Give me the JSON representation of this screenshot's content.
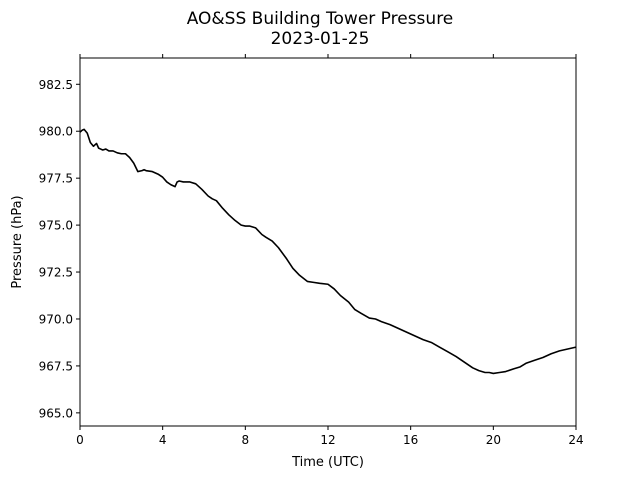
{
  "chart_data": {
    "type": "line",
    "title": "AO&SS Building Tower Pressure",
    "subtitle": "2023-01-25",
    "xlabel": "Time (UTC)",
    "ylabel": "Pressure (hPa)",
    "xlim": [
      0,
      24
    ],
    "ylim": [
      964.3,
      983.9
    ],
    "xticks": [
      0,
      4,
      8,
      12,
      16,
      20,
      24
    ],
    "xtick_labels": [
      "0",
      "4",
      "8",
      "12",
      "16",
      "20",
      "24"
    ],
    "yticks": [
      965.0,
      967.5,
      970.0,
      972.5,
      975.0,
      977.5,
      980.0,
      982.5
    ],
    "ytick_labels": [
      "965.0",
      "967.5",
      "970.0",
      "972.5",
      "975.0",
      "977.5",
      "980.0",
      "982.5"
    ],
    "grid": false,
    "line_color": "#000000",
    "series": [
      {
        "x": [
          0,
          0.1,
          0.2,
          0.35,
          0.5,
          0.65,
          0.8,
          0.9,
          1.0,
          1.1,
          1.25,
          1.4,
          1.6,
          1.8,
          2.0,
          2.2,
          2.4,
          2.6,
          2.8,
          3.0,
          3.1,
          3.2,
          3.5,
          3.8,
          4.0,
          4.2,
          4.4,
          4.6,
          4.7,
          4.8,
          5.0,
          5.3,
          5.6,
          5.9,
          6.2,
          6.4,
          6.6,
          6.9,
          7.2,
          7.5,
          7.8,
          8.0,
          8.2,
          8.5,
          8.8,
          9.0,
          9.3,
          9.6,
          10.0,
          10.3,
          10.6,
          11.0,
          11.3,
          11.6,
          12.0,
          12.3,
          12.6,
          13.0,
          13.3,
          13.6,
          14.0,
          14.3,
          14.6,
          15.0,
          15.4,
          15.8,
          16.2,
          16.6,
          17.0,
          17.4,
          17.8,
          18.2,
          18.6,
          19.0,
          19.3,
          19.6,
          19.8,
          20.0,
          20.3,
          20.6,
          21.0,
          21.3,
          21.6,
          22.0,
          22.4,
          22.8,
          23.2,
          23.6,
          24.0
        ],
        "values": [
          979.95,
          980.05,
          980.1,
          979.9,
          979.4,
          979.2,
          979.35,
          979.1,
          979.05,
          979.0,
          979.05,
          978.95,
          978.95,
          978.85,
          978.8,
          978.8,
          978.6,
          978.3,
          977.85,
          977.9,
          977.95,
          977.9,
          977.85,
          977.7,
          977.55,
          977.3,
          977.15,
          977.05,
          977.3,
          977.35,
          977.3,
          977.3,
          977.2,
          976.9,
          976.55,
          976.4,
          976.3,
          975.9,
          975.55,
          975.25,
          975.0,
          974.95,
          974.95,
          974.85,
          974.5,
          974.35,
          974.15,
          973.8,
          973.2,
          972.7,
          972.35,
          972.0,
          971.95,
          971.9,
          971.85,
          971.6,
          971.25,
          970.9,
          970.5,
          970.3,
          970.05,
          970.0,
          969.85,
          969.7,
          969.5,
          969.3,
          969.1,
          968.9,
          968.75,
          968.5,
          968.25,
          968.0,
          967.7,
          967.4,
          967.25,
          967.15,
          967.15,
          967.1,
          967.15,
          967.2,
          967.35,
          967.45,
          967.65,
          967.8,
          967.95,
          968.15,
          968.3,
          968.4,
          968.5
        ]
      }
    ]
  }
}
